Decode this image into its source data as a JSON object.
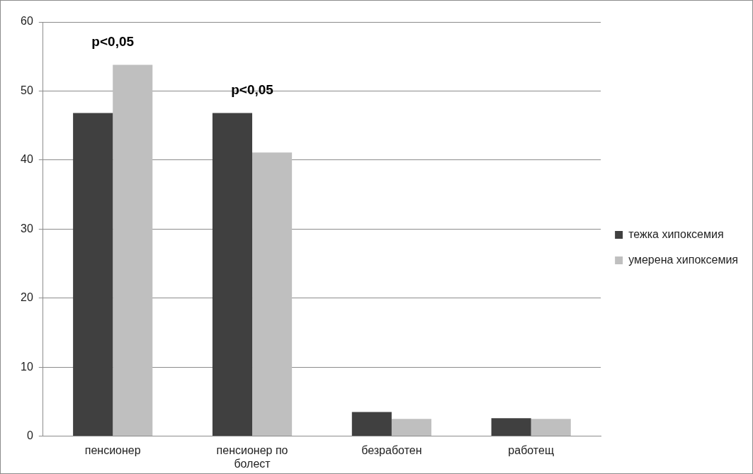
{
  "chart_data": {
    "type": "bar",
    "categories": [
      "пенсионер",
      "пенсионер по болест",
      "безработен",
      "работещ"
    ],
    "series": [
      {
        "name": "тежка хипоксемия",
        "color": "#404040",
        "values": [
          46.8,
          46.8,
          3.5,
          2.6
        ]
      },
      {
        "name": "умерена хипоксемия",
        "color": "#bfbfbf",
        "values": [
          53.8,
          41.1,
          2.5,
          2.5
        ]
      }
    ],
    "ylim": [
      0,
      60
    ],
    "yticks": [
      0,
      10,
      20,
      30,
      40,
      50,
      60
    ],
    "grid": "y",
    "legend": "right",
    "annotations": [
      "p<0,05",
      "p<0,05"
    ]
  }
}
